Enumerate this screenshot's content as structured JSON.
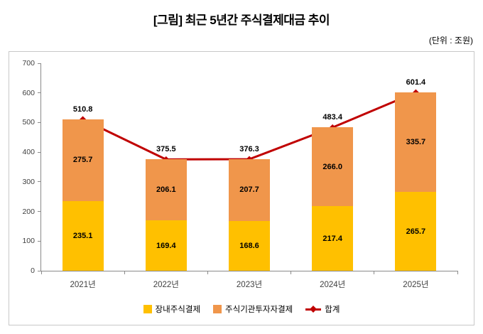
{
  "page": {
    "title": "[그림] 최근 5년간 주식결제대금 추이",
    "unit_label": "(단위 : 조원)"
  },
  "chart_data": {
    "type": "bar",
    "stacked": true,
    "title": "[그림] 최근 5년간 주식결제대금 추이",
    "unit": "조원",
    "categories": [
      "2021년",
      "2022년",
      "2023년",
      "2024년",
      "2025년"
    ],
    "series": [
      {
        "name": "장내주식결제",
        "color": "#FFC000",
        "values": [
          235.1,
          169.4,
          168.6,
          217.4,
          265.7
        ]
      },
      {
        "name": "주식기관투자자결제",
        "color": "#F0964B",
        "values": [
          275.7,
          206.1,
          207.7,
          266.0,
          335.7
        ]
      }
    ],
    "line_series": {
      "name": "합계",
      "color": "#C00000",
      "values": [
        510.8,
        375.5,
        376.3,
        483.4,
        601.4
      ]
    },
    "xlabel": "",
    "ylabel": "",
    "ylim": [
      0,
      700
    ],
    "yticks": [
      0,
      100,
      200,
      300,
      400,
      500,
      600,
      700
    ],
    "grid": false,
    "legend_position": "bottom"
  }
}
